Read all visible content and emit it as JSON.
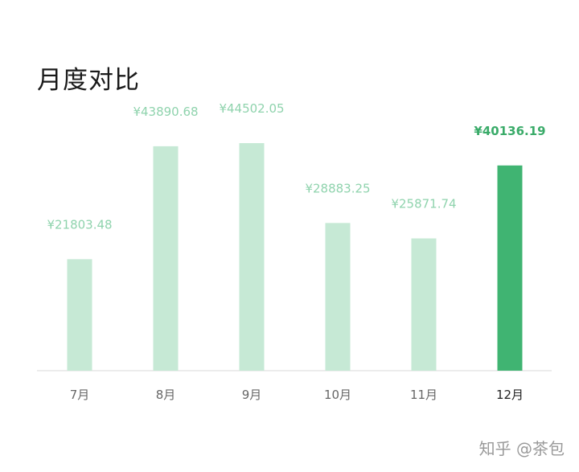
{
  "title": "月度对比",
  "watermark": "知乎 @茶包",
  "colors": {
    "bar_normal": "#c6e9d5",
    "bar_highlight": "#40b472",
    "label_normal": "#8fd3ad",
    "label_highlight": "#3aab69",
    "axis": "#e6e6e6",
    "tick_normal": "#666666",
    "tick_highlight": "#222222"
  },
  "chart_data": {
    "type": "bar",
    "title": "月度对比",
    "categories": [
      "7月",
      "8月",
      "9月",
      "10月",
      "11月",
      "12月"
    ],
    "values": [
      21803.48,
      43890.68,
      44502.05,
      28883.25,
      25871.74,
      40136.19
    ],
    "value_labels": [
      "¥21803.48",
      "¥43890.68",
      "¥44502.05",
      "¥28883.25",
      "¥25871.74",
      "¥40136.19"
    ],
    "highlight_index": 5,
    "ylim": [
      0,
      44502.05
    ],
    "grid": false,
    "xlabel": "",
    "ylabel": ""
  }
}
